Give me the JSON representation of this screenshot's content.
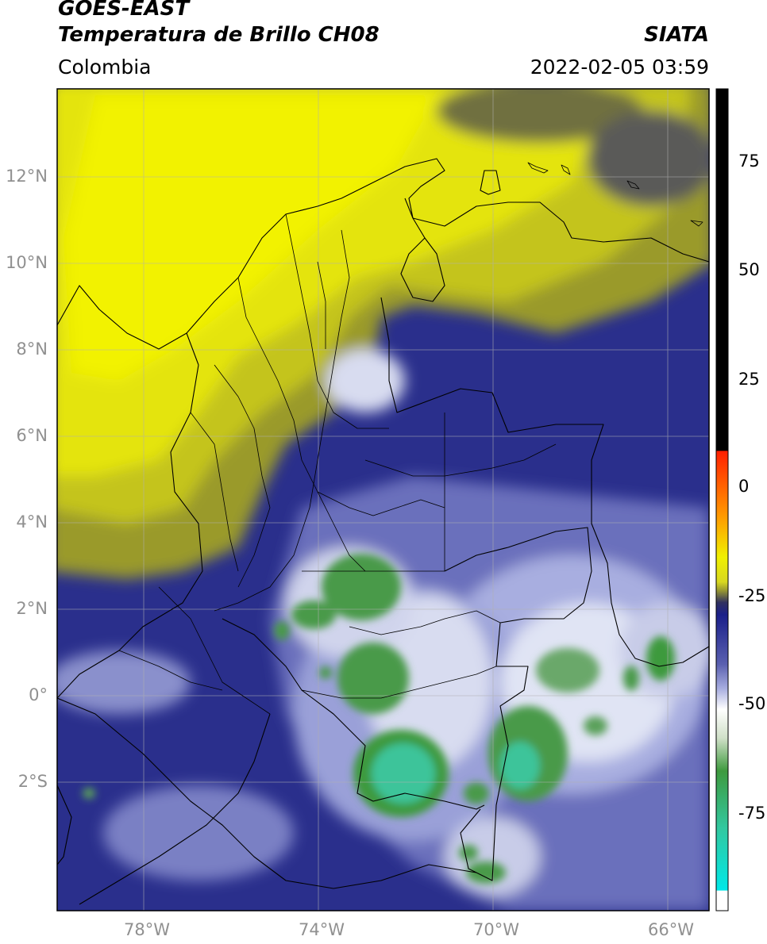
{
  "header": {
    "satellite": "GOES-EAST",
    "product": "Temperatura de Brillo CH08",
    "agency": "SIATA",
    "region": "Colombia",
    "datetime": "2022-02-05 03:59"
  },
  "map": {
    "lon_ticks": [
      "78°W",
      "74°W",
      "70°W",
      "66°W"
    ],
    "lat_ticks": [
      "12°N",
      "10°N",
      "8°N",
      "6°N",
      "4°N",
      "2°N",
      "0°",
      "2°S"
    ]
  },
  "colorbar": {
    "ticks": [
      "75",
      "50",
      "25",
      "0",
      "-25",
      "-50",
      "-75"
    ],
    "colors": {
      "black": "#000000",
      "red": "#ff2000",
      "orange": "#ff9a00",
      "yellow": "#f0f000",
      "olive": "#9a9a30",
      "navy": "#1a1f8a",
      "lavender": "#a8aee0",
      "white": "#ffffff",
      "green": "#3e9a3e",
      "teal": "#32c8a0",
      "cyan": "#00e8e8"
    }
  }
}
